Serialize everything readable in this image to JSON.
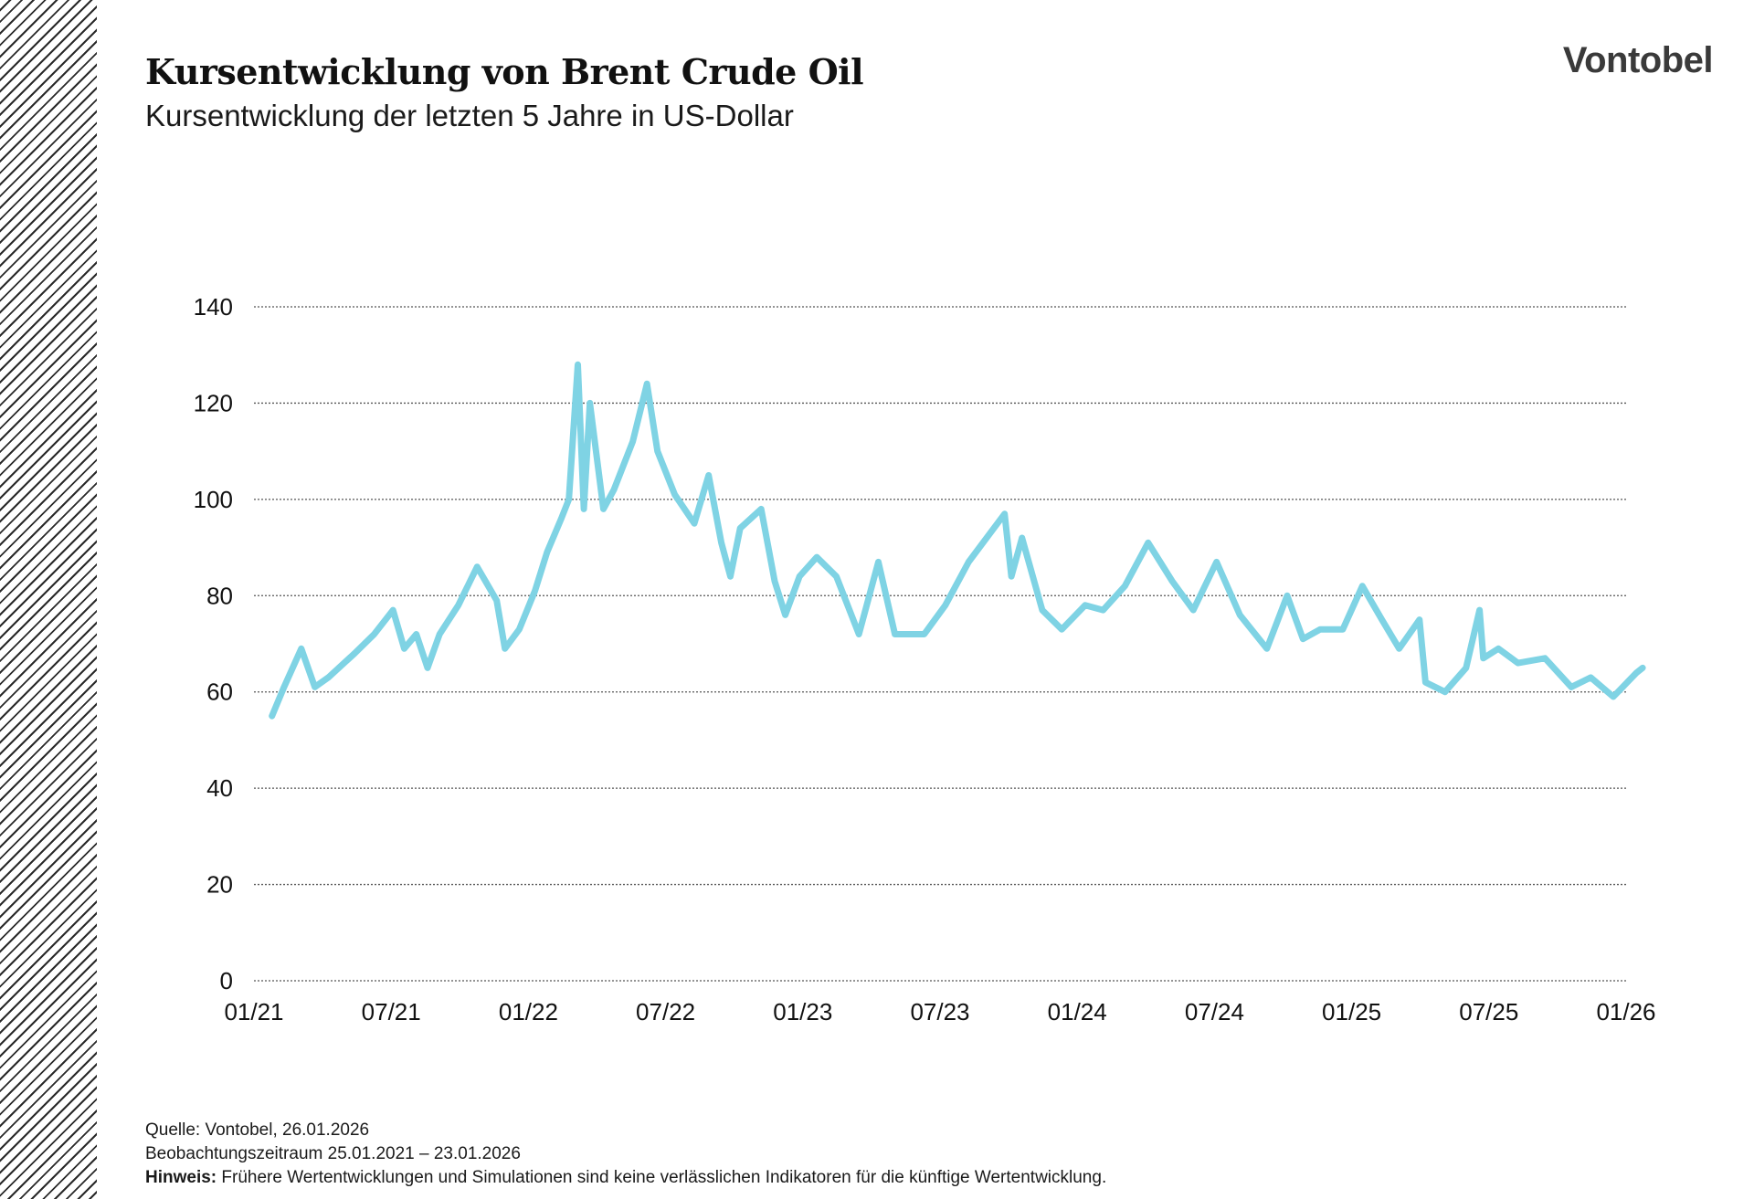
{
  "header": {
    "title": "Kursentwicklung von Brent Crude Oil",
    "subtitle": "Kursentwicklung der letzten 5 Jahre in US-Dollar",
    "logo": "Vontobel"
  },
  "footer": {
    "source": "Quelle: Vontobel, 26.01.2026",
    "period": "Beobachtungszeitraum 25.01.2021 – 23.01.2026",
    "note_label": "Hinweis:",
    "note_text": " Frühere Wertentwicklungen und Simulationen sind keine verlässlichen Indikatoren für die künftige Wertentwicklung."
  },
  "colors": {
    "line": "#7fd3e4",
    "grid": "#555555",
    "text": "#111111"
  },
  "chart_data": {
    "type": "line",
    "title": "Kursentwicklung von Brent Crude Oil",
    "subtitle": "Kursentwicklung der letzten 5 Jahre in US-Dollar",
    "xlabel": "",
    "ylabel": "",
    "ylim": [
      0,
      140
    ],
    "yticks": [
      0,
      20,
      40,
      60,
      80,
      100,
      120,
      140
    ],
    "xlim": [
      "2021-01-01",
      "2026-01-01"
    ],
    "xtick_labels": [
      "01/21",
      "07/21",
      "01/22",
      "07/22",
      "01/23",
      "07/23",
      "01/24",
      "07/24",
      "01/25",
      "07/25",
      "01/26"
    ],
    "grid": "horizontal dotted",
    "legend": "none",
    "series": [
      {
        "values": [
          {
            "x": "2021-01-25",
            "y": 55
          },
          {
            "x": "2021-02-10",
            "y": 61
          },
          {
            "x": "2021-03-05",
            "y": 69
          },
          {
            "x": "2021-03-23",
            "y": 61
          },
          {
            "x": "2021-04-10",
            "y": 63
          },
          {
            "x": "2021-05-15",
            "y": 68
          },
          {
            "x": "2021-06-10",
            "y": 72
          },
          {
            "x": "2021-07-05",
            "y": 77
          },
          {
            "x": "2021-07-20",
            "y": 69
          },
          {
            "x": "2021-08-05",
            "y": 72
          },
          {
            "x": "2021-08-20",
            "y": 65
          },
          {
            "x": "2021-09-05",
            "y": 72
          },
          {
            "x": "2021-09-30",
            "y": 78
          },
          {
            "x": "2021-10-25",
            "y": 86
          },
          {
            "x": "2021-11-20",
            "y": 79
          },
          {
            "x": "2021-12-01",
            "y": 69
          },
          {
            "x": "2021-12-20",
            "y": 73
          },
          {
            "x": "2022-01-10",
            "y": 81
          },
          {
            "x": "2022-01-26",
            "y": 89
          },
          {
            "x": "2022-02-14",
            "y": 96
          },
          {
            "x": "2022-02-24",
            "y": 100
          },
          {
            "x": "2022-03-08",
            "y": 128
          },
          {
            "x": "2022-03-16",
            "y": 98
          },
          {
            "x": "2022-03-24",
            "y": 120
          },
          {
            "x": "2022-04-11",
            "y": 98
          },
          {
            "x": "2022-04-25",
            "y": 102
          },
          {
            "x": "2022-05-20",
            "y": 112
          },
          {
            "x": "2022-06-08",
            "y": 124
          },
          {
            "x": "2022-06-22",
            "y": 110
          },
          {
            "x": "2022-07-15",
            "y": 101
          },
          {
            "x": "2022-08-10",
            "y": 95
          },
          {
            "x": "2022-08-29",
            "y": 105
          },
          {
            "x": "2022-09-15",
            "y": 91
          },
          {
            "x": "2022-09-27",
            "y": 84
          },
          {
            "x": "2022-10-10",
            "y": 94
          },
          {
            "x": "2022-11-07",
            "y": 98
          },
          {
            "x": "2022-11-25",
            "y": 83
          },
          {
            "x": "2022-12-09",
            "y": 76
          },
          {
            "x": "2022-12-28",
            "y": 84
          },
          {
            "x": "2023-01-20",
            "y": 88
          },
          {
            "x": "2023-02-15",
            "y": 84
          },
          {
            "x": "2023-03-17",
            "y": 72
          },
          {
            "x": "2023-04-12",
            "y": 87
          },
          {
            "x": "2023-05-04",
            "y": 72
          },
          {
            "x": "2023-06-12",
            "y": 72
          },
          {
            "x": "2023-07-10",
            "y": 78
          },
          {
            "x": "2023-08-10",
            "y": 87
          },
          {
            "x": "2023-09-27",
            "y": 97
          },
          {
            "x": "2023-10-06",
            "y": 84
          },
          {
            "x": "2023-10-20",
            "y": 92
          },
          {
            "x": "2023-11-16",
            "y": 77
          },
          {
            "x": "2023-12-12",
            "y": 73
          },
          {
            "x": "2024-01-12",
            "y": 78
          },
          {
            "x": "2024-02-05",
            "y": 77
          },
          {
            "x": "2024-03-05",
            "y": 82
          },
          {
            "x": "2024-04-05",
            "y": 91
          },
          {
            "x": "2024-05-07",
            "y": 83
          },
          {
            "x": "2024-06-04",
            "y": 77
          },
          {
            "x": "2024-07-05",
            "y": 87
          },
          {
            "x": "2024-08-05",
            "y": 76
          },
          {
            "x": "2024-09-10",
            "y": 69
          },
          {
            "x": "2024-10-07",
            "y": 80
          },
          {
            "x": "2024-10-28",
            "y": 71
          },
          {
            "x": "2024-11-20",
            "y": 73
          },
          {
            "x": "2024-12-20",
            "y": 73
          },
          {
            "x": "2025-01-15",
            "y": 82
          },
          {
            "x": "2025-02-10",
            "y": 75
          },
          {
            "x": "2025-03-05",
            "y": 69
          },
          {
            "x": "2025-04-01",
            "y": 75
          },
          {
            "x": "2025-04-09",
            "y": 62
          },
          {
            "x": "2025-05-05",
            "y": 60
          },
          {
            "x": "2025-06-02",
            "y": 65
          },
          {
            "x": "2025-06-20",
            "y": 77
          },
          {
            "x": "2025-06-25",
            "y": 67
          },
          {
            "x": "2025-07-15",
            "y": 69
          },
          {
            "x": "2025-08-10",
            "y": 66
          },
          {
            "x": "2025-09-15",
            "y": 67
          },
          {
            "x": "2025-10-20",
            "y": 61
          },
          {
            "x": "2025-11-15",
            "y": 63
          },
          {
            "x": "2025-12-15",
            "y": 59
          },
          {
            "x": "2026-01-15",
            "y": 64
          },
          {
            "x": "2026-01-23",
            "y": 65
          }
        ]
      }
    ]
  }
}
